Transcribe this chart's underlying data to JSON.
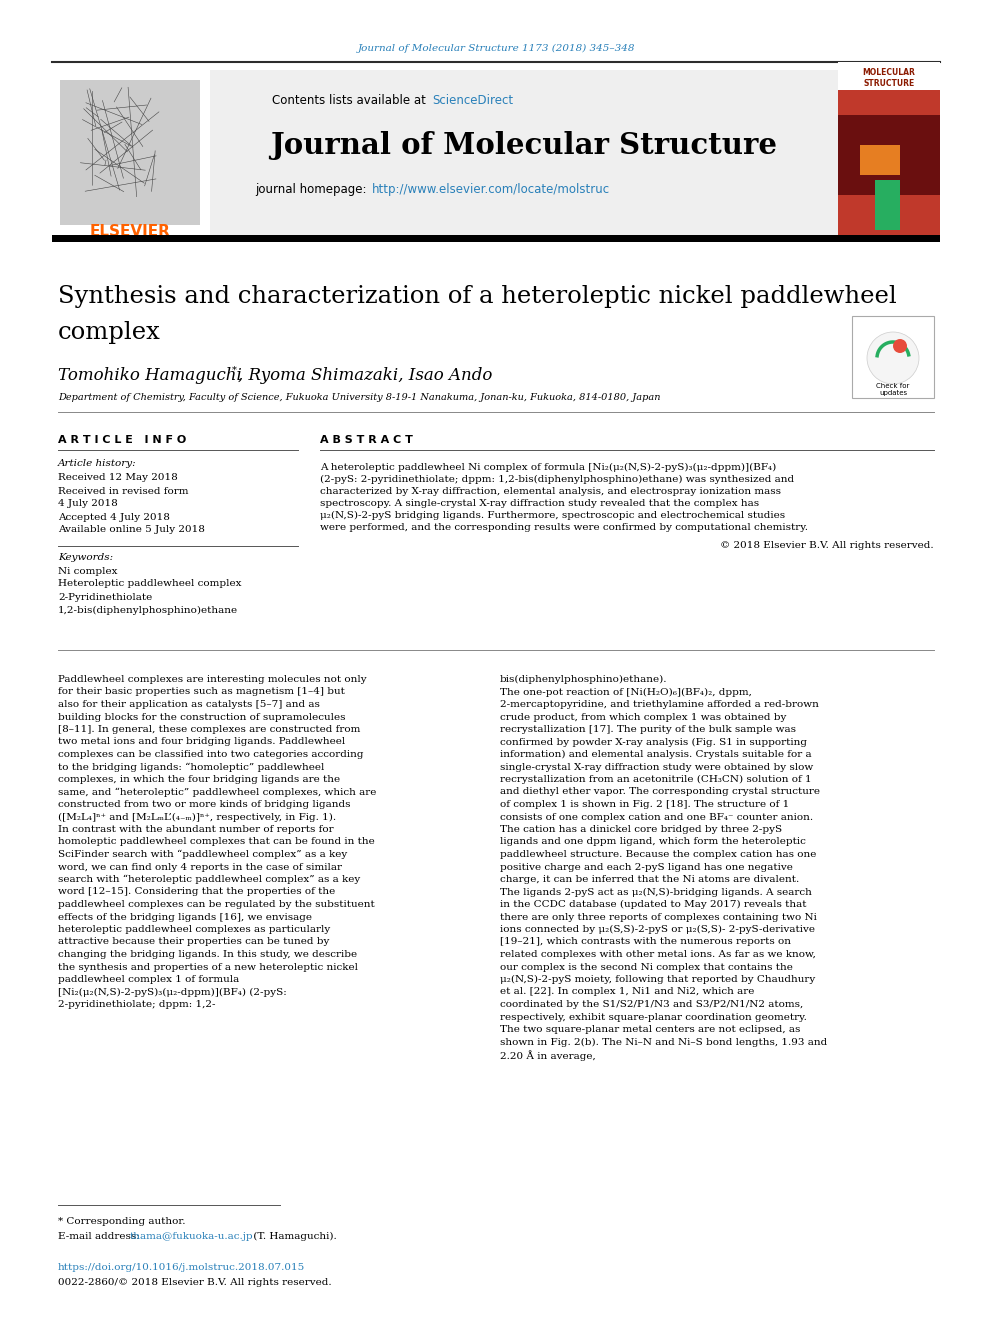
{
  "journal_ref": "Journal of Molecular Structure 1173 (2018) 345–348",
  "journal_name": "Journal of Molecular Structure",
  "journal_homepage_label": "journal homepage:",
  "journal_homepage_url": "http://www.elsevier.com/locate/molstruc",
  "contents_label": "Contents lists available at",
  "sciencedirect": "ScienceDirect",
  "paper_title_line1": "Synthesis and characterization of a heteroleptic nickel paddlewheel",
  "paper_title_line2": "complex",
  "authors_line": "Tomohiko Hamaguchi*, Ryoma Shimazaki, Isao Ando",
  "affiliation": "Department of Chemistry, Faculty of Science, Fukuoka University 8-19-1 Nanakuma, Jonan-ku, Fukuoka, 814-0180, Japan",
  "article_info_header": "A R T I C L E   I N F O",
  "abstract_header": "A B S T R A C T",
  "article_history_label": "Article history:",
  "received": "Received 12 May 2018",
  "received_revised_label": "Received in revised form",
  "received_revised_date": "4 July 2018",
  "accepted": "Accepted 4 July 2018",
  "available": "Available online 5 July 2018",
  "keywords_label": "Keywords:",
  "keywords": [
    "Ni complex",
    "Heteroleptic paddlewheel complex",
    "2-Pyridinethiolate",
    "1,2-bis(diphenylphosphino)ethane"
  ],
  "abstract_text": "A heteroleptic paddlewheel Ni complex of formula [Ni₂(μ₂(N,S)-2-pyS)₃(μ₂-dppm)](BF₄) (2-pyS: 2-pyridinethiolate; dppm: 1,2-bis(diphenylphosphino)ethane) was synthesized and characterized by X-ray diffraction, elemental analysis, and electrospray ionization mass spectroscopy. A single-crystal X-ray diffraction study revealed that the complex has μ₂(N,S)-2-pyS bridging ligands. Furthermore, spectroscopic and electrochemical studies were performed, and the corresponding results were confirmed by computational chemistry.",
  "copyright": "© 2018 Elsevier B.V. All rights reserved.",
  "body_col1": "Paddlewheel complexes are interesting molecules not only for their basic properties such as magnetism [1–4] but also for their application as catalysts [5–7] and as building blocks for the construction of supramolecules [8–11]. In general, these complexes are constructed from two metal ions and four bridging ligands. Paddlewheel complexes can be classified into two categories according to the bridging ligands: “homoleptic” paddlewheel complexes, in which the four bridging ligands are the same, and “heteroleptic” paddlewheel complexes, which are constructed from two or more kinds of bridging ligands ([M₂L₄]ⁿ⁺ and [M₂LₘL’(₄₋ₘ)]ⁿ⁺, respectively, in Fig. 1).\n   In contrast with the abundant number of reports for homoleptic paddlewheel complexes that can be found in the SciFinder search with “paddlewheel complex” as a key word, we can find only 4 reports in the case of similar search with “heteroleptic paddlewheel complex” as a key word [12–15]. Considering that the properties of the paddlewheel complexes can be regulated by the substituent effects of the bridging ligands [16], we envisage heteroleptic paddlewheel complexes as particularly attractive because their properties can be tuned by changing the bridging ligands. In this study, we describe the synthesis and properties of a new heteroleptic nickel paddlewheel complex 1 of formula [Ni₂(μ₂(N,S)-2-pyS)₃(μ₂-dppm)](BF₄) (2-pyS: 2-pyridinethiolate; dppm: 1,2-",
  "body_col2": "bis(diphenylphosphino)ethane).\n   The one-pot reaction of [Ni(H₂O)₆](BF₄)₂, dppm, 2-mercaptopyridine, and triethylamine afforded a red-brown crude product, from which complex 1 was obtained by recrystallization [17]. The purity of the bulk sample was confirmed by powder X-ray analysis (Fig. S1 in supporting information) and elemental analysis. Crystals suitable for a single-crystal X-ray diffraction study were obtained by slow recrystallization from an acetonitrile (CH₃CN) solution of 1 and diethyl ether vapor. The corresponding crystal structure of complex 1 is shown in Fig. 2 [18]. The structure of 1 consists of one complex cation and one BF₄⁻ counter anion. The cation has a dinickel core bridged by three 2-pyS ligands and one dppm ligand, which form the heteroleptic paddlewheel structure. Because the complex cation has one positive charge and each 2-pyS ligand has one negative charge, it can be inferred that the Ni atoms are divalent. The ligands 2-pyS act as μ₂(N,S)-bridging ligands. A search in the CCDC database (updated to May 2017) reveals that there are only three reports of complexes containing two Ni ions connected by μ₂(S,S)-2-pyS or μ₂(S,S)- 2-pyS-derivative [19–21], which contrasts with the numerous reports on related complexes with other metal ions. As far as we know, our complex is the second Ni complex that contains the μ₂(N,S)-2-pyS moiety, following that reported by Chaudhury et al. [22]. In complex 1, Ni1 and Ni2, which are coordinated by the S1/S2/P1/N3 and S3/P2/N1/N2 atoms, respectively, exhibit square-planar coordination geometry. The two square-planar metal centers are not eclipsed, as shown in Fig. 2(b). The Ni–N and Ni–S bond lengths, 1.93 and 2.20 Å in average,",
  "footnote_corresponding": "* Corresponding author.",
  "footnote_email_label": "E-mail address:",
  "footnote_email": "thama@fukuoka-u.ac.jp",
  "footnote_email_person": "(T. Hamaguchi).",
  "doi_line": "https://doi.org/10.1016/j.molstruc.2018.07.015",
  "issn_line": "0022-2860/© 2018 Elsevier B.V. All rights reserved.",
  "header_bar_color": "#2c2c2c",
  "link_color": "#2980b9",
  "elsevier_orange": "#FF6200",
  "background_gray": "#efefef",
  "text_color": "#000000",
  "fig_width": 9.92,
  "fig_height": 13.23
}
